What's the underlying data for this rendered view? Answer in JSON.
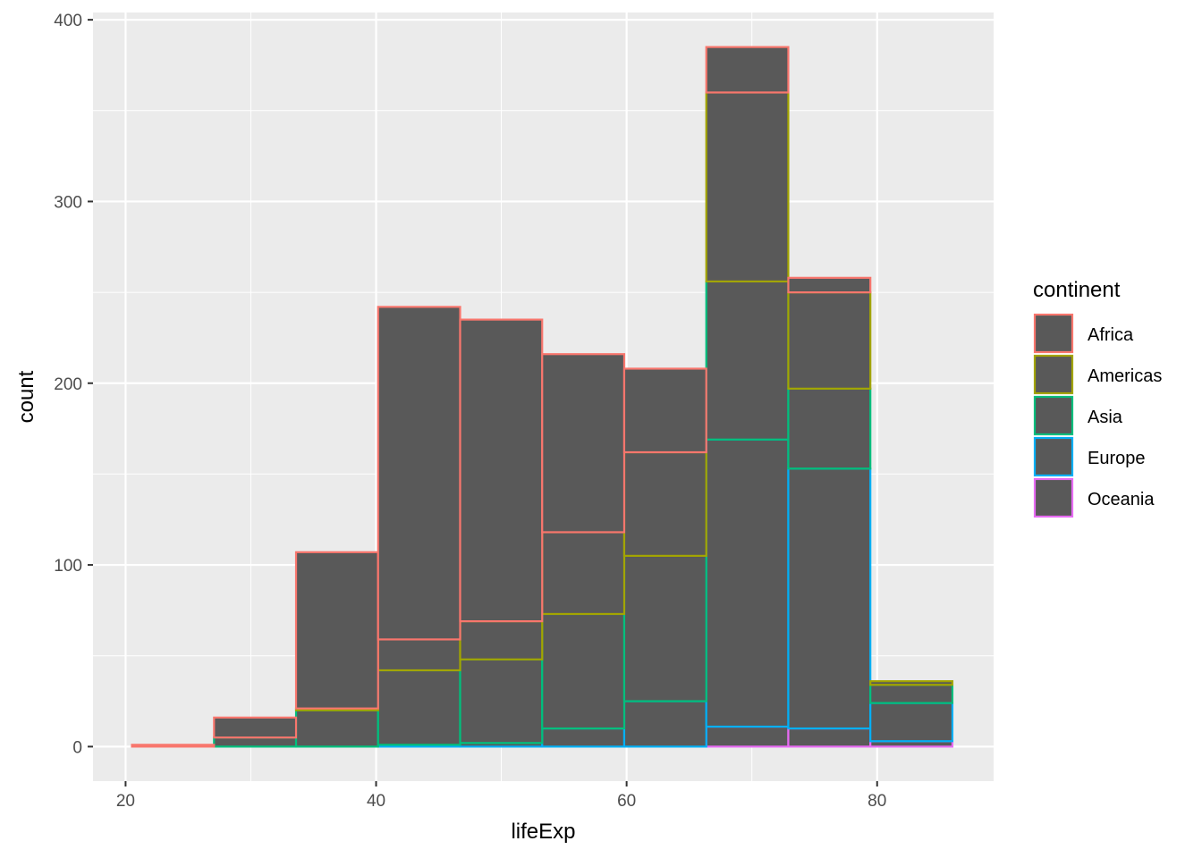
{
  "chart_data": {
    "type": "bar",
    "subtype": "stacked-histogram",
    "xlabel": "lifeExp",
    "ylabel": "count",
    "xlim": [
      17.4,
      89.3
    ],
    "ylim": [
      -19,
      404
    ],
    "x_ticks": [
      20,
      40,
      60,
      80
    ],
    "y_ticks": [
      0,
      100,
      200,
      300,
      400
    ],
    "grid": true,
    "bin_edges": [
      20.51,
      27.06,
      33.61,
      40.16,
      46.71,
      53.26,
      59.81,
      66.36,
      72.91,
      79.46,
      86.01
    ],
    "legend": {
      "title": "continent",
      "placement": "right"
    },
    "fill_color": "#595959",
    "series": [
      {
        "name": "Oceania",
        "color": "#E76BF3",
        "values": [
          0,
          0,
          0,
          0,
          0,
          0,
          0,
          11,
          10,
          3
        ]
      },
      {
        "name": "Europe",
        "color": "#00B0F6",
        "values": [
          0,
          0,
          0,
          1,
          2,
          10,
          25,
          158,
          143,
          21
        ]
      },
      {
        "name": "Asia",
        "color": "#00BF7D",
        "values": [
          0,
          5,
          20,
          41,
          46,
          63,
          80,
          87,
          44,
          10
        ]
      },
      {
        "name": "Americas",
        "color": "#A3A500",
        "values": [
          0,
          0,
          1,
          17,
          21,
          45,
          57,
          104,
          53,
          2
        ]
      },
      {
        "name": "Africa",
        "color": "#F8766D",
        "values": [
          1,
          11,
          86,
          183,
          166,
          98,
          46,
          25,
          8,
          0
        ]
      }
    ],
    "legend_order": [
      "Africa",
      "Americas",
      "Asia",
      "Europe",
      "Oceania"
    ]
  }
}
